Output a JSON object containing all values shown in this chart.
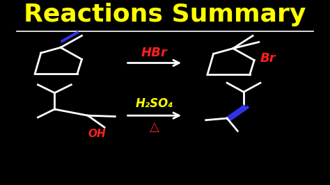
{
  "title": "Reactions Summary",
  "title_color": "#FFFF00",
  "title_fontsize": 26,
  "bg_color": "#000000",
  "white": "#FFFFFF",
  "red": "#FF2020",
  "blue": "#3333EE",
  "yellow": "#FFFF00",
  "reaction1_reagent": "HBr",
  "reaction1_product": "Br",
  "reaction1_reagent_color": "#FF2020",
  "reaction1_product_color": "#FF2020",
  "reaction2_reagent": "H₂SO₄",
  "reaction2_delta": "△",
  "reaction2_reagent_color": "#FFFF00",
  "reaction2_delta_color": "#FF2020",
  "oh_color": "#FF2020"
}
